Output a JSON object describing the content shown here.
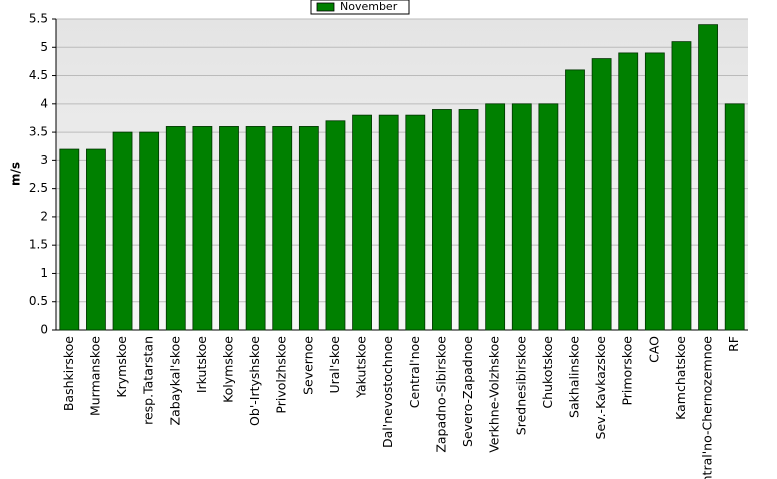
{
  "chart_data": {
    "type": "bar",
    "y_label": "m/s",
    "legend_position": "top",
    "categories": [
      "Bashkirskoe",
      "Murmanskoe",
      "Krymskoe",
      "resp.Tatarstan",
      "Zabaykal'skoe",
      "Irkutskoe",
      "Kolymskoe",
      "Ob'-Irtyshskoe",
      "Privolzhskoe",
      "Severnoe",
      "Ural'skoe",
      "Yakutskoe",
      "Dal'nevostochnoe",
      "Central'noe",
      "Zapadno-Sibirskoe",
      "Severo-Zapadnoe",
      "Verkhne-Volzhskoe",
      "Srednesibirskoe",
      "Chukotskoe",
      "Sakhalinskoe",
      "Sev.-Kavkazskoe",
      "Primorskoe",
      "CAO",
      "Kamchatskoe",
      "Central'no-Chernozemnoe",
      "RF"
    ],
    "series": [
      {
        "name": "November",
        "color": "#008000",
        "values": [
          3.2,
          3.2,
          3.5,
          3.5,
          3.6,
          3.6,
          3.6,
          3.6,
          3.6,
          3.6,
          3.7,
          3.8,
          3.8,
          3.8,
          3.9,
          3.9,
          4.0,
          4.0,
          4.0,
          4.6,
          4.8,
          4.9,
          4.9,
          5.1,
          5.4,
          4.0
        ]
      }
    ],
    "ylim": [
      0,
      5.5
    ],
    "yticks": [
      0,
      0.5,
      1,
      1.5,
      2,
      2.5,
      3,
      3.5,
      4,
      4.5,
      5,
      5.5
    ],
    "grid": true
  }
}
